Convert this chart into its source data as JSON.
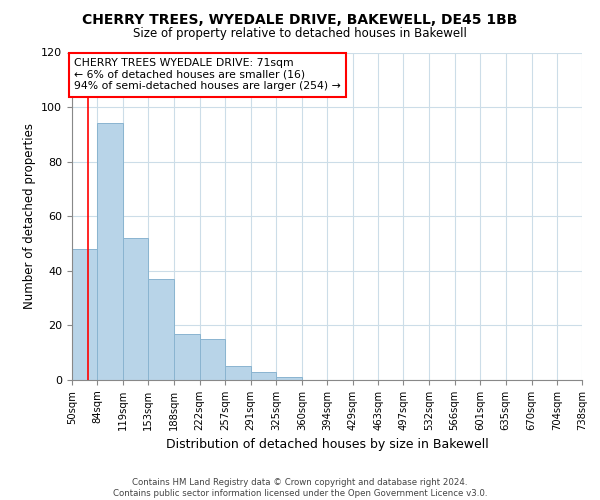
{
  "title": "CHERRY TREES, WYEDALE DRIVE, BAKEWELL, DE45 1BB",
  "subtitle": "Size of property relative to detached houses in Bakewell",
  "xlabel": "Distribution of detached houses by size in Bakewell",
  "ylabel": "Number of detached properties",
  "bar_edges": [
    50,
    84,
    119,
    153,
    188,
    222,
    257,
    291,
    325,
    360,
    394,
    429,
    463,
    497,
    532,
    566,
    601,
    635,
    670,
    704,
    738
  ],
  "bar_heights": [
    48,
    94,
    52,
    37,
    17,
    15,
    5,
    3,
    1,
    0,
    0,
    0,
    0,
    0,
    0,
    0,
    0,
    0,
    0,
    0
  ],
  "tick_labels": [
    "50sqm",
    "84sqm",
    "119sqm",
    "153sqm",
    "188sqm",
    "222sqm",
    "257sqm",
    "291sqm",
    "325sqm",
    "360sqm",
    "394sqm",
    "429sqm",
    "463sqm",
    "497sqm",
    "532sqm",
    "566sqm",
    "601sqm",
    "635sqm",
    "670sqm",
    "704sqm",
    "738sqm"
  ],
  "bar_color": "#b8d4e8",
  "bar_edge_color": "#8ab4d0",
  "red_line_x": 71,
  "annotation_box_text": "CHERRY TREES WYEDALE DRIVE: 71sqm\n← 6% of detached houses are smaller (16)\n94% of semi-detached houses are larger (254) →",
  "ylim": [
    0,
    120
  ],
  "yticks": [
    0,
    20,
    40,
    60,
    80,
    100,
    120
  ],
  "grid_color": "#ccdde8",
  "background_color": "#ffffff",
  "footer_line1": "Contains HM Land Registry data © Crown copyright and database right 2024.",
  "footer_line2": "Contains public sector information licensed under the Open Government Licence v3.0."
}
